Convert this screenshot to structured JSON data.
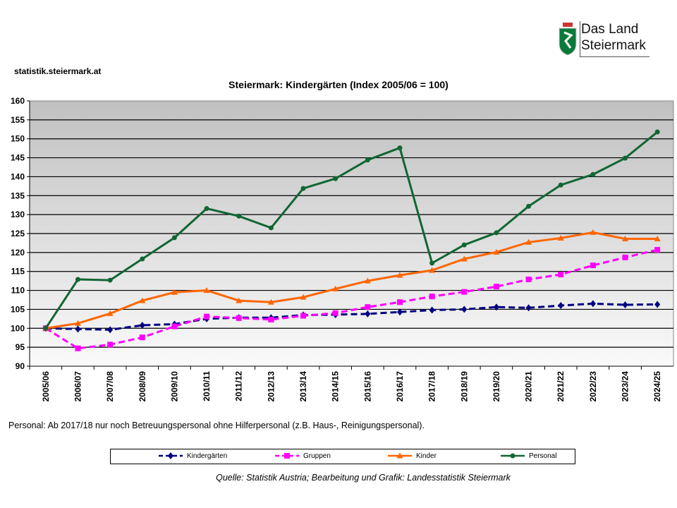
{
  "site": "statistik.steiermark.at",
  "logo": {
    "line1": "Das Land",
    "line2": "Steiermark"
  },
  "note": "Personal: Ab 2017/18  nur noch Betreuungspersonal ohne Hilferpersonal (z.B. Haus-, Reinigungspersonal).",
  "source": "Quelle: Statistik Austria; Bearbeitung und Grafik: Landesstatistik Steiermark",
  "chart_data": {
    "type": "line",
    "title": "Steiermark: Kindergärten (Index 2005/06 = 100)",
    "xlabel": "",
    "ylabel": "",
    "ylim": [
      90,
      160
    ],
    "yticks": [
      90,
      95,
      100,
      105,
      110,
      115,
      120,
      125,
      130,
      135,
      140,
      145,
      150,
      155,
      160
    ],
    "grid": true,
    "legend_position": "bottom",
    "categories": [
      "2005/06",
      "2006/07",
      "2007/08",
      "2008/09",
      "2009/10",
      "2010/11",
      "2011/12",
      "2012/13",
      "2013/14",
      "2014/15",
      "2015/16",
      "2016/17",
      "2017/18",
      "2018/19",
      "2019/20",
      "2020/21",
      "2021/22",
      "2022/23",
      "2023/24",
      "2024/25"
    ],
    "series": [
      {
        "name": "Kindergärten",
        "color": "#000080",
        "dashed": true,
        "marker": "diamond",
        "values": [
          100,
          99.8,
          99.6,
          100.8,
          101.1,
          102.5,
          102.8,
          102.8,
          103.5,
          103.6,
          103.8,
          104.3,
          104.8,
          105.0,
          105.6,
          105.4,
          106.0,
          106.5,
          106.2,
          106.3
        ]
      },
      {
        "name": "Gruppen",
        "color": "#FF00FF",
        "dashed": true,
        "marker": "square",
        "values": [
          100,
          94.7,
          95.7,
          97.6,
          100.5,
          103.1,
          102.7,
          102.3,
          103.3,
          104.0,
          105.6,
          106.9,
          108.4,
          109.6,
          111.0,
          112.9,
          114.2,
          116.6,
          118.7,
          120.7
        ]
      },
      {
        "name": "Kinder",
        "color": "#FF6600",
        "dashed": false,
        "marker": "triangle",
        "values": [
          100,
          101.3,
          103.9,
          107.3,
          109.5,
          110.0,
          107.3,
          106.9,
          108.2,
          110.4,
          112.5,
          114.0,
          115.3,
          118.3,
          120.1,
          122.7,
          123.8,
          125.3,
          123.6,
          123.6
        ]
      },
      {
        "name": "Personal",
        "color": "#116633",
        "dashed": false,
        "marker": "circle",
        "values": [
          100,
          112.9,
          112.7,
          118.3,
          123.9,
          131.6,
          129.6,
          126.5,
          136.9,
          139.5,
          144.4,
          147.6,
          117.2,
          122.0,
          125.2,
          132.2,
          137.8,
          140.6,
          144.9,
          151.8
        ]
      }
    ]
  }
}
